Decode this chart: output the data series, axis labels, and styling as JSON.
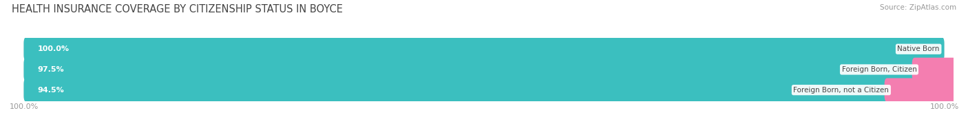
{
  "title": "HEALTH INSURANCE COVERAGE BY CITIZENSHIP STATUS IN BOYCE",
  "source": "Source: ZipAtlas.com",
  "categories": [
    "Native Born",
    "Foreign Born, Citizen",
    "Foreign Born, not a Citizen"
  ],
  "with_coverage": [
    100.0,
    97.5,
    94.5
  ],
  "without_coverage": [
    0.0,
    2.5,
    5.5
  ],
  "color_with": "#3BBFBF",
  "color_without": "#F47EB0",
  "bar_bg": "#E4E4E4",
  "title_fontsize": 10.5,
  "label_fontsize": 8,
  "tick_fontsize": 8,
  "source_fontsize": 7.5,
  "x_left_label": "100.0%",
  "x_right_label": "100.0%"
}
